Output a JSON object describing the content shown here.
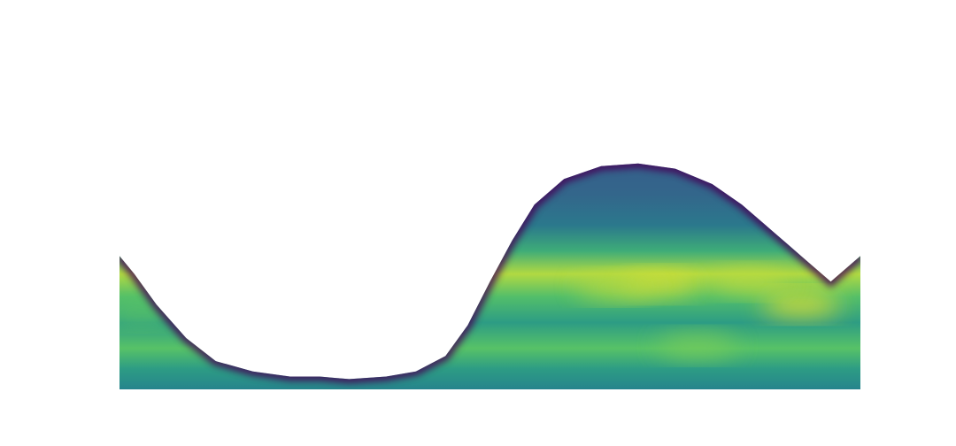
{
  "chart_data": {
    "type": "heatmap",
    "title": "",
    "xlabel": "",
    "ylabel": "",
    "colormap": "viridis",
    "colormap_stops": [
      "#440154",
      "#3b528b",
      "#21918c",
      "#5ec962",
      "#fde725"
    ],
    "background": "#ffffff",
    "grid": false,
    "legend": "none",
    "x": [
      0,
      0.1,
      0.2,
      0.3,
      0.4,
      0.5,
      0.6,
      0.7,
      0.8,
      0.9,
      1.0
    ],
    "y": [
      0,
      0.1,
      0.2,
      0.3,
      0.4,
      0.5,
      0.6,
      0.7,
      0.8,
      0.9,
      1.0
    ],
    "mask_upper_boundary": [
      [
        0.0,
        0.52
      ],
      [
        0.02,
        0.45
      ],
      [
        0.05,
        0.33
      ],
      [
        0.09,
        0.2
      ],
      [
        0.13,
        0.11
      ],
      [
        0.18,
        0.07
      ],
      [
        0.23,
        0.05
      ],
      [
        0.27,
        0.05
      ],
      [
        0.31,
        0.04
      ],
      [
        0.36,
        0.05
      ],
      [
        0.4,
        0.07
      ],
      [
        0.44,
        0.13
      ],
      [
        0.47,
        0.25
      ],
      [
        0.5,
        0.42
      ],
      [
        0.53,
        0.58
      ],
      [
        0.56,
        0.72
      ],
      [
        0.6,
        0.82
      ],
      [
        0.65,
        0.87
      ],
      [
        0.7,
        0.88
      ],
      [
        0.75,
        0.86
      ],
      [
        0.8,
        0.8
      ],
      [
        0.84,
        0.72
      ],
      [
        0.88,
        0.62
      ],
      [
        0.92,
        0.52
      ],
      [
        0.96,
        0.42
      ],
      [
        1.0,
        0.52
      ]
    ],
    "bands": [
      {
        "y": 0.0,
        "value": 0.45
      },
      {
        "y": 0.08,
        "value": 0.55
      },
      {
        "y": 0.16,
        "value": 0.72
      },
      {
        "y": 0.26,
        "value": 0.55
      },
      {
        "y": 0.36,
        "value": 0.7
      },
      {
        "y": 0.45,
        "value": 0.88
      },
      {
        "y": 0.54,
        "value": 0.62
      },
      {
        "y": 0.64,
        "value": 0.4
      },
      {
        "y": 0.76,
        "value": 0.33
      },
      {
        "y": 0.88,
        "value": 0.3
      },
      {
        "y": 1.0,
        "value": 0.25
      }
    ],
    "hotspots": [
      {
        "x": 0.92,
        "y": 0.33,
        "value": 1.0
      },
      {
        "x": 0.73,
        "y": 0.41,
        "value": 0.95
      },
      {
        "x": 0.67,
        "y": 0.4,
        "value": 0.9
      },
      {
        "x": 0.85,
        "y": 0.42,
        "value": 0.9
      },
      {
        "x": 0.03,
        "y": 0.3,
        "value": 0.75
      },
      {
        "x": 0.78,
        "y": 0.17,
        "value": 0.8
      }
    ]
  }
}
